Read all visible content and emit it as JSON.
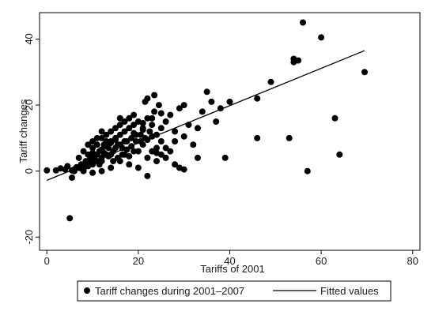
{
  "chart_data": {
    "type": "scatter",
    "xlabel": "Tariffs of 2001",
    "ylabel": "Tariff changes",
    "xlim": [
      -1.6,
      81.6
    ],
    "ylim": [
      -24,
      48
    ],
    "x_ticks": [
      0,
      20,
      40,
      60,
      80
    ],
    "y_ticks": [
      -20,
      0,
      20,
      40
    ],
    "grid": false,
    "legend_position": "bottom",
    "colors": {
      "points": "#000000",
      "line": "#000000",
      "frame": "#000000"
    },
    "series": [
      {
        "name": "Tariff changes during 2001–2007",
        "kind": "scatter",
        "points": [
          [
            0,
            0.2
          ],
          [
            5,
            -14.3
          ],
          [
            5.5,
            -2
          ],
          [
            6,
            0.5
          ],
          [
            7,
            1
          ],
          [
            7.5,
            2
          ],
          [
            8,
            0
          ],
          [
            8.5,
            3
          ],
          [
            9,
            1.5
          ],
          [
            9.5,
            4
          ],
          [
            10,
            2
          ],
          [
            10.5,
            5
          ],
          [
            11,
            3
          ],
          [
            11.5,
            6
          ],
          [
            12,
            4
          ],
          [
            12.5,
            8
          ],
          [
            13,
            5
          ],
          [
            13.5,
            7
          ],
          [
            14,
            9
          ],
          [
            14.5,
            6
          ],
          [
            15,
            10
          ],
          [
            15.5,
            8
          ],
          [
            16,
            11
          ],
          [
            16.5,
            7
          ],
          [
            17,
            12
          ],
          [
            17.5,
            9
          ],
          [
            18,
            13
          ],
          [
            18.5,
            10
          ],
          [
            19,
            14
          ],
          [
            19.5,
            11
          ],
          [
            20,
            15
          ],
          [
            20.5,
            9
          ],
          [
            21,
            13
          ],
          [
            21.5,
            10
          ],
          [
            22,
            16
          ],
          [
            22.5,
            12
          ],
          [
            23,
            14
          ],
          [
            23.5,
            18
          ],
          [
            24,
            11
          ],
          [
            24.5,
            20
          ],
          [
            25,
            13
          ],
          [
            10,
            7
          ],
          [
            12,
            10
          ],
          [
            14,
            12
          ],
          [
            16,
            14
          ],
          [
            18,
            16
          ],
          [
            9,
            5
          ],
          [
            11,
            8
          ],
          [
            13,
            9
          ],
          [
            15,
            7
          ],
          [
            17,
            5
          ],
          [
            19,
            6
          ],
          [
            21,
            8
          ],
          [
            23,
            6
          ],
          [
            25,
            9
          ],
          [
            26,
            15
          ],
          [
            27,
            17
          ],
          [
            28,
            12
          ],
          [
            29,
            19
          ],
          [
            30,
            20
          ],
          [
            31,
            14
          ],
          [
            32,
            8
          ],
          [
            33,
            13
          ],
          [
            34,
            18
          ],
          [
            35,
            24
          ],
          [
            36,
            21
          ],
          [
            37,
            15
          ],
          [
            38,
            19
          ],
          [
            40,
            21
          ],
          [
            21.5,
            21
          ],
          [
            22,
            22
          ],
          [
            23.5,
            23
          ],
          [
            26,
            4
          ],
          [
            27,
            6
          ],
          [
            28,
            2
          ],
          [
            29,
            1
          ],
          [
            30,
            0.5
          ],
          [
            22,
            -1.5
          ],
          [
            24,
            3
          ],
          [
            20,
            1
          ],
          [
            18,
            2
          ],
          [
            16,
            3
          ],
          [
            14,
            1
          ],
          [
            12,
            0
          ],
          [
            10,
            -0.5
          ],
          [
            8,
            0.3
          ],
          [
            6,
            0
          ],
          [
            7,
            4
          ],
          [
            8,
            6
          ],
          [
            9,
            8
          ],
          [
            10,
            9
          ],
          [
            11,
            10
          ],
          [
            12,
            12
          ],
          [
            13,
            11
          ],
          [
            15,
            13
          ],
          [
            16,
            16
          ],
          [
            17,
            15
          ],
          [
            19,
            17
          ],
          [
            33,
            4
          ],
          [
            39,
            4
          ],
          [
            46,
            10
          ],
          [
            46,
            22
          ],
          [
            49,
            27
          ],
          [
            53,
            10
          ],
          [
            54,
            33
          ],
          [
            54,
            34
          ],
          [
            55,
            33.5
          ],
          [
            56,
            45
          ],
          [
            57,
            0
          ],
          [
            60,
            40.5
          ],
          [
            63,
            16
          ],
          [
            64,
            5
          ],
          [
            69.5,
            30
          ],
          [
            9.5,
            2.5
          ],
          [
            10.5,
            3.5
          ],
          [
            11.5,
            2
          ],
          [
            12.5,
            5.5
          ],
          [
            13.5,
            4.5
          ],
          [
            14.5,
            3
          ],
          [
            15.5,
            4
          ],
          [
            16.5,
            5
          ],
          [
            17.5,
            6.5
          ],
          [
            18.5,
            7.5
          ],
          [
            19.5,
            9
          ],
          [
            20.5,
            11
          ],
          [
            21,
            12.5
          ],
          [
            22,
            9.5
          ],
          [
            23,
            10.5
          ],
          [
            24,
            7
          ],
          [
            25,
            5
          ],
          [
            11,
            5
          ],
          [
            12,
            6.5
          ],
          [
            13,
            7.5
          ],
          [
            14,
            8.5
          ],
          [
            15,
            9.5
          ],
          [
            8.5,
            1.5
          ],
          [
            9,
            2.5
          ],
          [
            7.5,
            0.8
          ],
          [
            6.5,
            1.2
          ],
          [
            5.5,
            0.2
          ],
          [
            4,
            0.5
          ],
          [
            3,
            0.8
          ],
          [
            2,
            0.2
          ],
          [
            4.5,
            1.5
          ],
          [
            10,
            5.5
          ],
          [
            12,
            3
          ],
          [
            14,
            5
          ],
          [
            16,
            8
          ],
          [
            18,
            4.5
          ],
          [
            20,
            6
          ],
          [
            22,
            4
          ],
          [
            24,
            5.5
          ],
          [
            26,
            7
          ],
          [
            28,
            9
          ],
          [
            30,
            10.5
          ],
          [
            17,
            9
          ],
          [
            19,
            11.5
          ],
          [
            21,
            14.5
          ],
          [
            23,
            16
          ],
          [
            25,
            17.5
          ]
        ]
      },
      {
        "name": "Fitted values",
        "kind": "line",
        "points": [
          [
            0,
            -2.8
          ],
          [
            69.5,
            36.5
          ]
        ]
      }
    ]
  }
}
